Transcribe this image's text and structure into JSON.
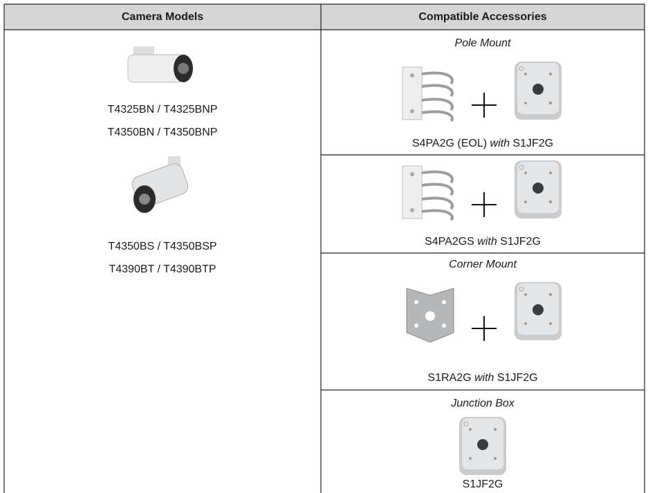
{
  "header": {
    "columns": [
      "Camera Models",
      "Compatible Accessories"
    ]
  },
  "cameras": [
    {
      "models": [
        "T4325BN / T4325BNP",
        "T4350BN / T4350BNP"
      ]
    },
    {
      "models": [
        "T4350BS / T4350BSP",
        "T4390BT / T4390BTP"
      ]
    }
  ],
  "accessories": [
    {
      "heading": "Pole Mount",
      "items": [
        {
          "code": "S4PA2G (EOL)",
          "joiner": "with",
          "companion": "S1JF2G"
        },
        {
          "code": "S4PA2GS",
          "joiner": "with",
          "companion": "S1JF2G"
        }
      ]
    },
    {
      "heading": "Corner Mount",
      "items": [
        {
          "code": "S1RA2G",
          "joiner": "with",
          "companion": "S1JF2G"
        }
      ]
    },
    {
      "heading": "Junction Box",
      "items": [
        {
          "code": "S1JF2G"
        }
      ]
    }
  ]
}
